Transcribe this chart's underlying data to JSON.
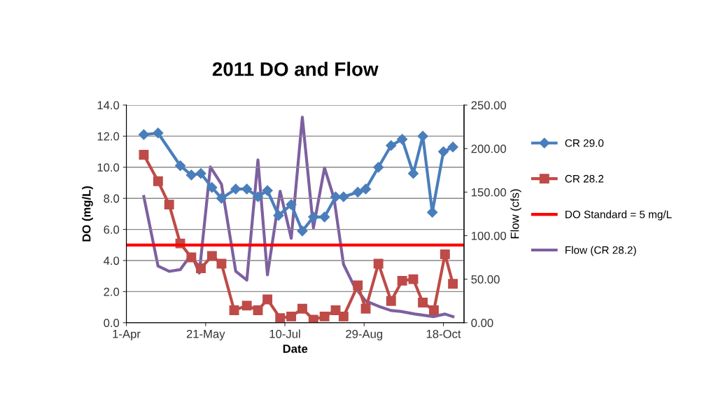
{
  "chart_data": {
    "type": "line",
    "title": "2011 DO and Flow",
    "xlabel": "Date",
    "ylabel": "DO (mg/L)",
    "y2label": "Flow (cfs)",
    "xlim": [
      "2011-04-01",
      "2011-10-31"
    ],
    "xticks": [
      {
        "value": "2011-04-01",
        "label": "1-Apr"
      },
      {
        "value": "2011-05-21",
        "label": "21-May"
      },
      {
        "value": "2011-07-10",
        "label": "10-Jul"
      },
      {
        "value": "2011-08-29",
        "label": "29-Aug"
      },
      {
        "value": "2011-10-18",
        "label": "18-Oct"
      }
    ],
    "ylim": [
      0,
      14
    ],
    "yticks": [
      {
        "value": 0,
        "label": "0.0"
      },
      {
        "value": 2,
        "label": "2.0"
      },
      {
        "value": 4,
        "label": "4.0"
      },
      {
        "value": 6,
        "label": "6.0"
      },
      {
        "value": 8,
        "label": "8.0"
      },
      {
        "value": 10,
        "label": "10.0"
      },
      {
        "value": 12,
        "label": "12.0"
      },
      {
        "value": 14,
        "label": "14.0"
      }
    ],
    "y2lim": [
      0,
      250
    ],
    "y2ticks": [
      {
        "value": 0,
        "label": "0.00"
      },
      {
        "value": 50,
        "label": "50.00"
      },
      {
        "value": 100,
        "label": "100.00"
      },
      {
        "value": 150,
        "label": "150.00"
      },
      {
        "value": 200,
        "label": "200.00"
      },
      {
        "value": 250,
        "label": "250.00"
      }
    ],
    "grid": "y",
    "legend": "right",
    "series": [
      {
        "name": "CR 29.0",
        "color": "#4a7ebb",
        "marker": "diamond",
        "x": [
          "2011-04-12",
          "2011-04-21",
          "2011-05-05",
          "2011-05-12",
          "2011-05-18",
          "2011-05-25",
          "2011-05-31",
          "2011-06-09",
          "2011-06-16",
          "2011-06-23",
          "2011-06-29",
          "2011-07-06",
          "2011-07-14",
          "2011-07-21",
          "2011-07-28",
          "2011-08-04",
          "2011-08-11",
          "2011-08-16",
          "2011-08-25",
          "2011-08-30",
          "2011-09-07",
          "2011-09-15",
          "2011-09-22",
          "2011-09-29",
          "2011-10-05",
          "2011-10-11",
          "2011-10-18",
          "2011-10-24"
        ],
        "values": [
          12.1,
          12.2,
          10.1,
          9.5,
          9.6,
          8.7,
          8.0,
          8.6,
          8.6,
          8.1,
          8.5,
          6.9,
          7.6,
          5.9,
          6.8,
          6.8,
          8.1,
          8.1,
          8.4,
          8.6,
          10.0,
          11.4,
          11.8,
          9.6,
          12.0,
          7.1,
          11.0,
          11.3
        ]
      },
      {
        "name": "CR 28.2",
        "color": "#be4b48",
        "marker": "square",
        "x": [
          "2011-04-12",
          "2011-04-21",
          "2011-04-28",
          "2011-05-05",
          "2011-05-12",
          "2011-05-18",
          "2011-05-25",
          "2011-05-31",
          "2011-06-08",
          "2011-06-16",
          "2011-06-23",
          "2011-06-29",
          "2011-07-07",
          "2011-07-14",
          "2011-07-21",
          "2011-07-28",
          "2011-08-04",
          "2011-08-11",
          "2011-08-16",
          "2011-08-25",
          "2011-08-30",
          "2011-09-07",
          "2011-09-15",
          "2011-09-22",
          "2011-09-29",
          "2011-10-05",
          "2011-10-12",
          "2011-10-19",
          "2011-10-24"
        ],
        "values": [
          10.8,
          9.1,
          7.6,
          5.1,
          4.2,
          3.5,
          4.3,
          3.8,
          0.8,
          1.1,
          0.8,
          1.5,
          0.3,
          0.4,
          0.9,
          0.2,
          0.4,
          0.8,
          0.4,
          2.4,
          0.9,
          3.8,
          1.4,
          2.7,
          2.8,
          1.3,
          0.8,
          4.4,
          2.5
        ]
      },
      {
        "name": "Flow (CR 28.2)",
        "color": "#7d60a0",
        "marker": "none",
        "axis": "y2",
        "x": [
          "2011-04-12",
          "2011-04-21",
          "2011-04-28",
          "2011-05-05",
          "2011-05-09",
          "2011-05-12",
          "2011-05-17",
          "2011-05-24",
          "2011-05-31",
          "2011-06-09",
          "2011-06-16",
          "2011-06-23",
          "2011-06-29",
          "2011-07-07",
          "2011-07-14",
          "2011-07-21",
          "2011-07-28",
          "2011-08-04",
          "2011-08-10",
          "2011-08-16",
          "2011-08-23",
          "2011-08-30",
          "2011-09-07",
          "2011-09-15",
          "2011-09-21",
          "2011-09-30",
          "2011-10-12",
          "2011-10-19",
          "2011-10-24"
        ],
        "values": [
          145,
          65,
          59,
          61,
          71,
          79,
          57,
          179,
          159,
          59,
          49,
          187,
          55,
          151,
          97,
          236,
          109,
          178,
          143,
          67,
          41,
          25,
          19,
          14,
          13,
          10,
          7,
          10,
          7
        ]
      }
    ],
    "ref_lines": [
      {
        "axis": "y",
        "value": 5,
        "label": "DO Standard = 5 mg/L",
        "color": "#ff0000",
        "line_style": "solid"
      }
    ]
  }
}
